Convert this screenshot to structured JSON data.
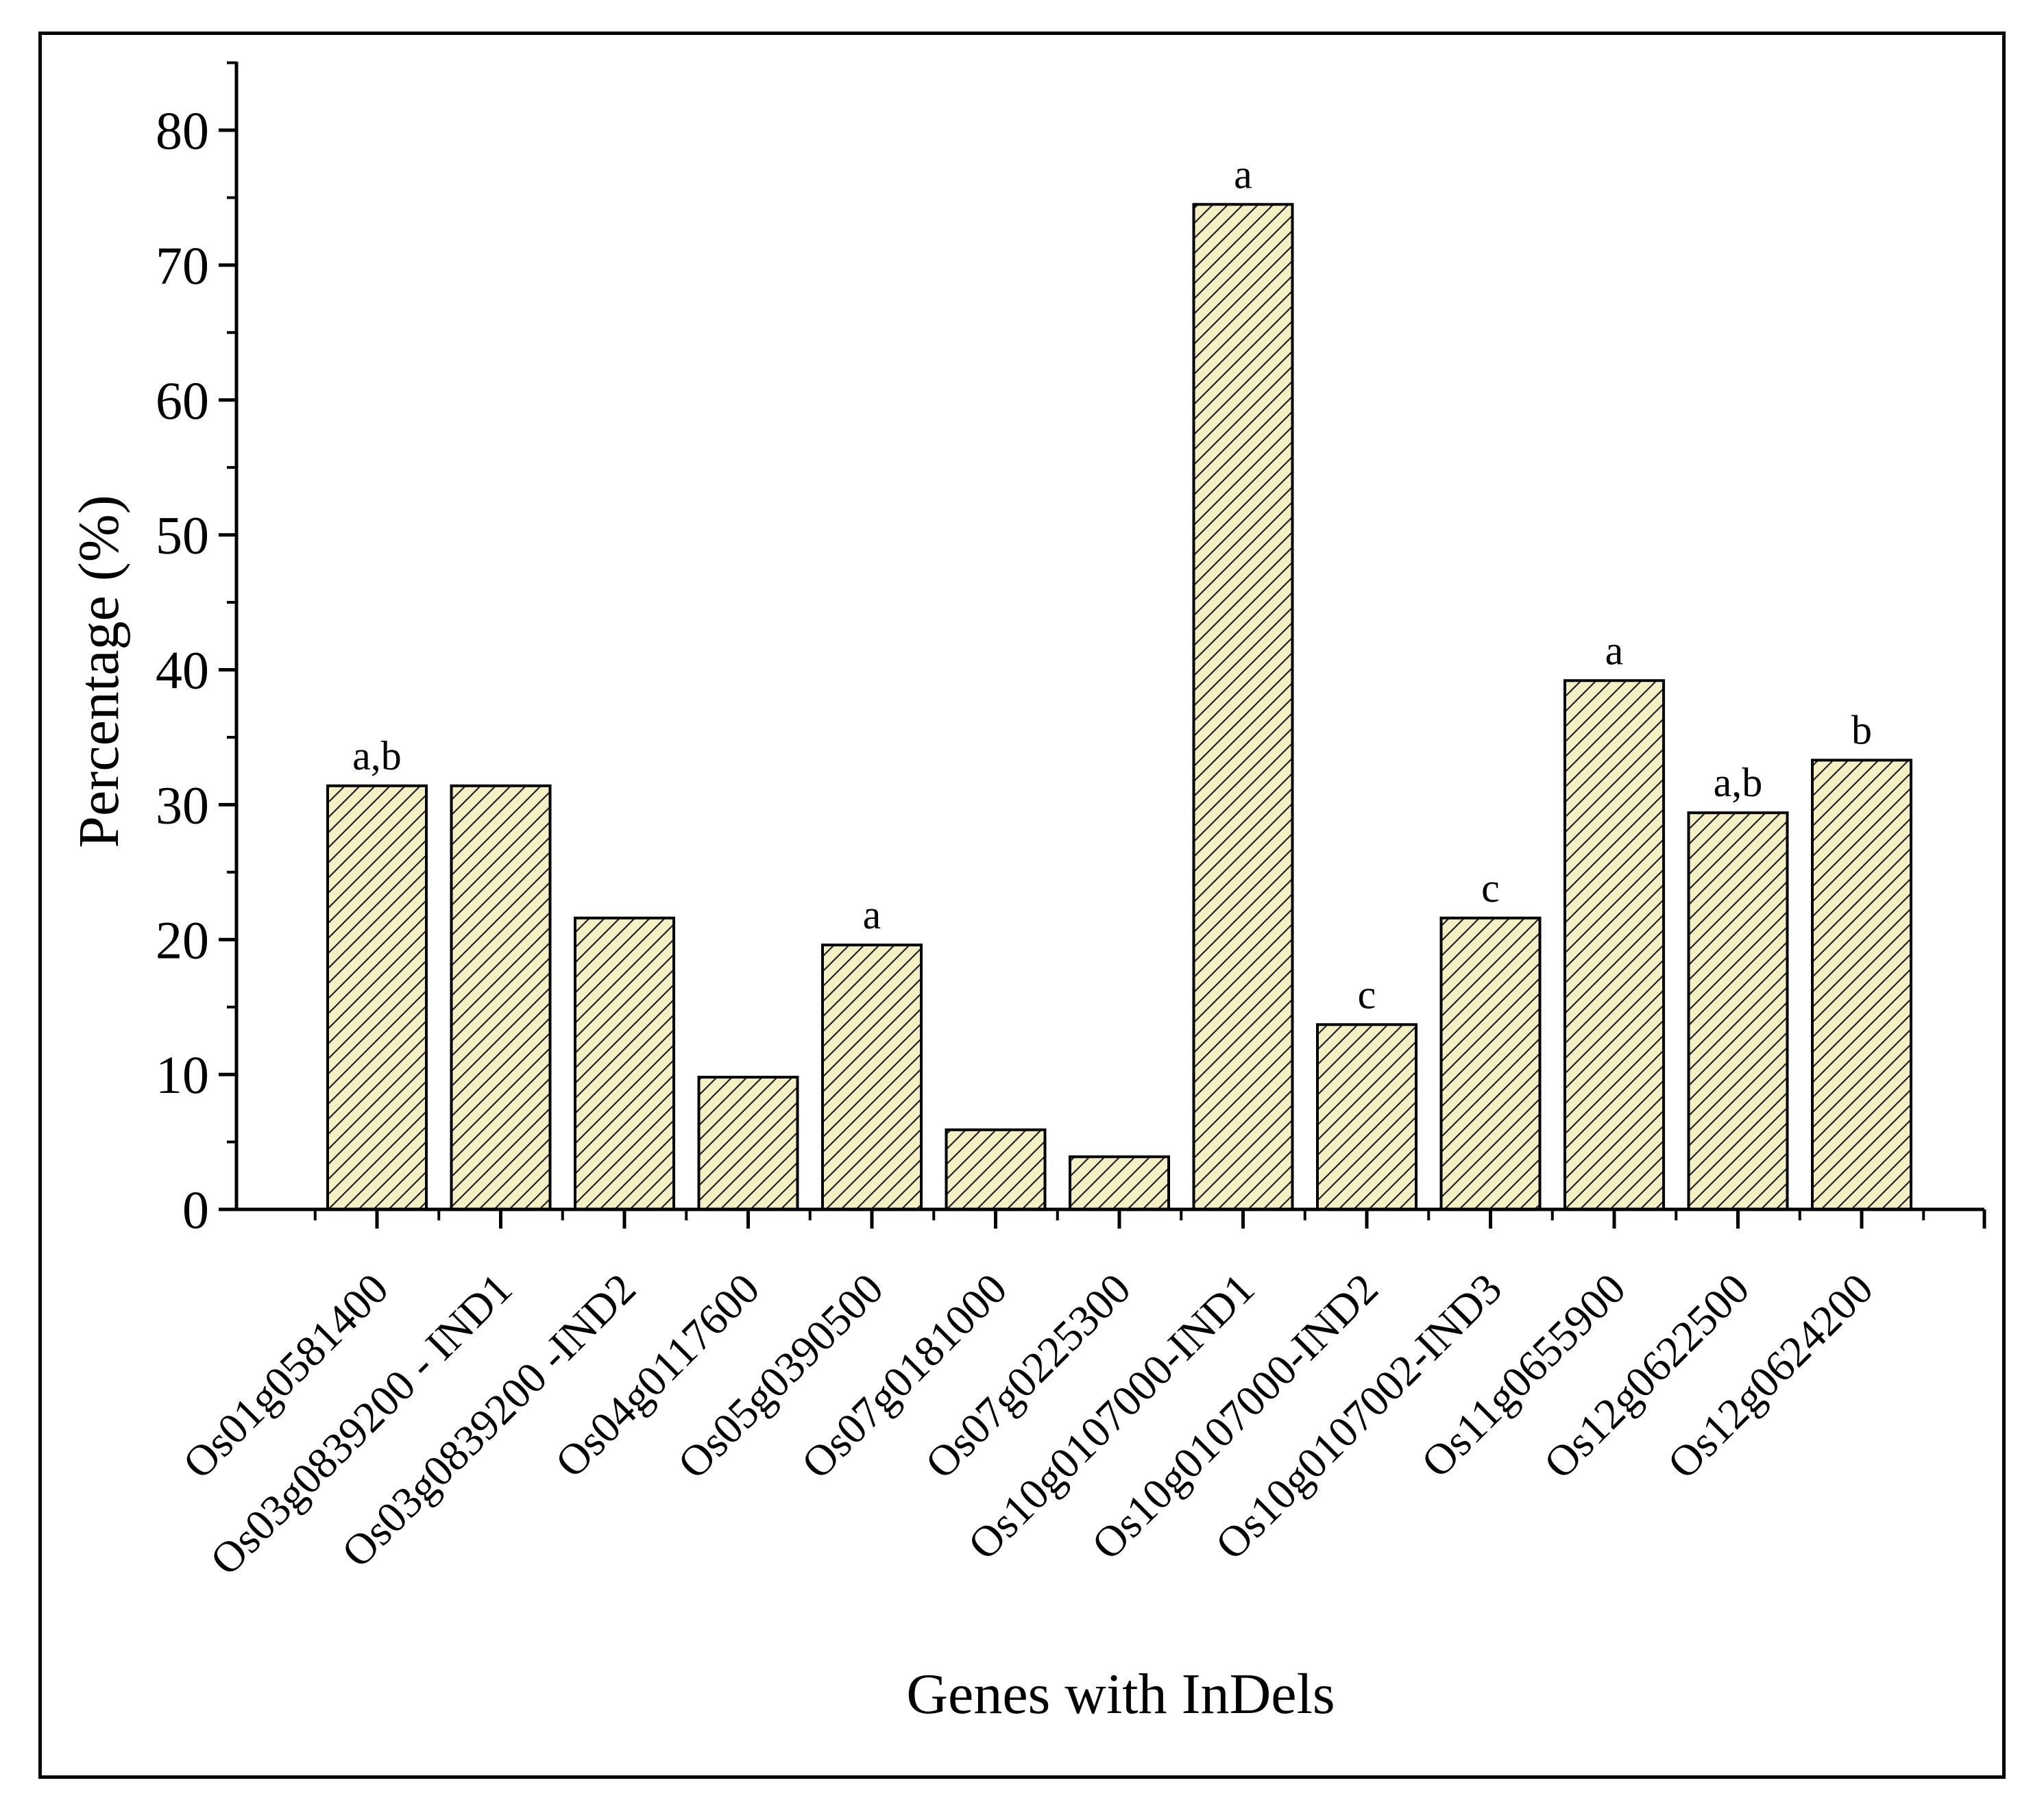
{
  "chart_data": {
    "type": "bar",
    "xlabel": "Genes with InDels",
    "ylabel": "Percentage (%)",
    "ylim": [
      0,
      85
    ],
    "yticks": [
      0,
      10,
      20,
      30,
      40,
      50,
      60,
      70,
      80
    ],
    "categories": [
      "Os01g0581400",
      "Os03g0839200 - IND1",
      "Os03g0839200 -IND2",
      "Os04g0117600",
      "Os05g0390500",
      "Os07g0181000",
      "Os07g0225300",
      "Os10g0107000-IND1",
      "Os10g0107000-IND2",
      "Os10g0107002-IND3",
      "Os11g0655900",
      "Os12g0622500",
      "Os12g0624200"
    ],
    "values": [
      31.4,
      31.4,
      21.6,
      9.8,
      19.6,
      5.9,
      3.9,
      74.5,
      13.7,
      21.6,
      39.2,
      29.4,
      33.3
    ],
    "significance_labels": [
      "a,b",
      "",
      "",
      "",
      "a",
      "",
      "",
      "a",
      "c",
      "c",
      "a",
      "a,b",
      "b"
    ],
    "bar_fill": "#f5efc4",
    "bar_hatch": "diagonal",
    "grid": false,
    "legend": "none"
  }
}
